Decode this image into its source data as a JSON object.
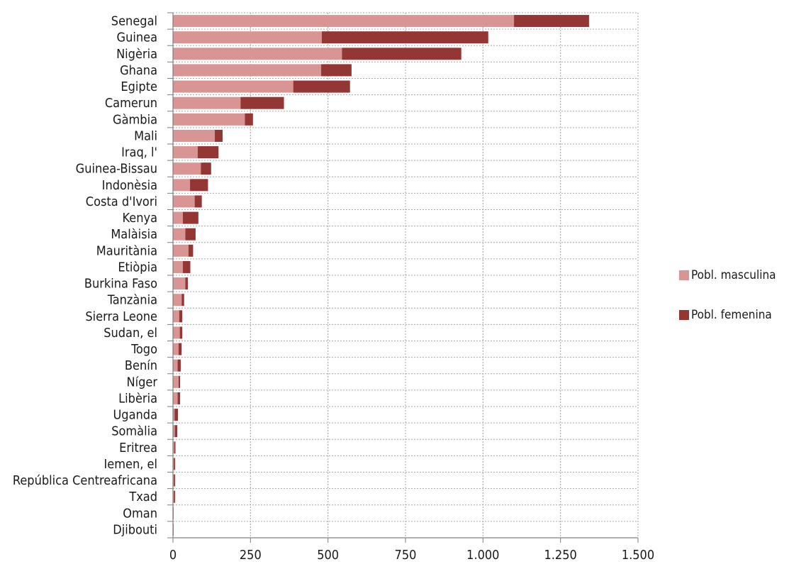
{
  "chart_data": {
    "type": "bar",
    "orientation": "horizontal",
    "stacked": true,
    "categories": [
      "Senegal",
      "Guinea",
      "Nigèria",
      "Ghana",
      "Egipte",
      "Camerun",
      "Gàmbia",
      "Mali",
      "Iraq, l'",
      "Guinea-Bissau",
      "Indonèsia",
      "Costa d'Ivori",
      "Kenya",
      "Malàisia",
      "Mauritània",
      "Etiòpia",
      "Burkina Faso",
      "Tanzània",
      "Sierra Leone",
      "Sudan, el",
      "Togo",
      "Benín",
      "Níger",
      "Libèria",
      "Uganda",
      "Somàlia",
      "Eritrea",
      "Iemen, el",
      "República Centreafricana",
      "Txad",
      "Oman",
      "Djibouti"
    ],
    "series": [
      {
        "name": "Pobl. masculina",
        "color": "#d99594",
        "values": [
          1100,
          480,
          545,
          478,
          388,
          218,
          232,
          135,
          80,
          90,
          55,
          70,
          32,
          40,
          50,
          32,
          40,
          28,
          20,
          22,
          18,
          15,
          18,
          15,
          5,
          6,
          4,
          3,
          3,
          3,
          1,
          1
        ]
      },
      {
        "name": "Pobl. femenina",
        "color": "#943634",
        "values": [
          242,
          537,
          385,
          98,
          183,
          140,
          26,
          25,
          67,
          33,
          58,
          23,
          50,
          33,
          15,
          24,
          8,
          8,
          10,
          8,
          10,
          10,
          5,
          8,
          11,
          8,
          4,
          4,
          4,
          4,
          1,
          1
        ]
      }
    ],
    "xlim": [
      0,
      1500
    ],
    "xticks": [
      "0",
      "250",
      "500",
      "750",
      "1.000",
      "1.250",
      "1.500"
    ],
    "xtick_values": [
      0,
      250,
      500,
      750,
      1000,
      1250,
      1500
    ],
    "grid": true,
    "legend_position": "right"
  }
}
